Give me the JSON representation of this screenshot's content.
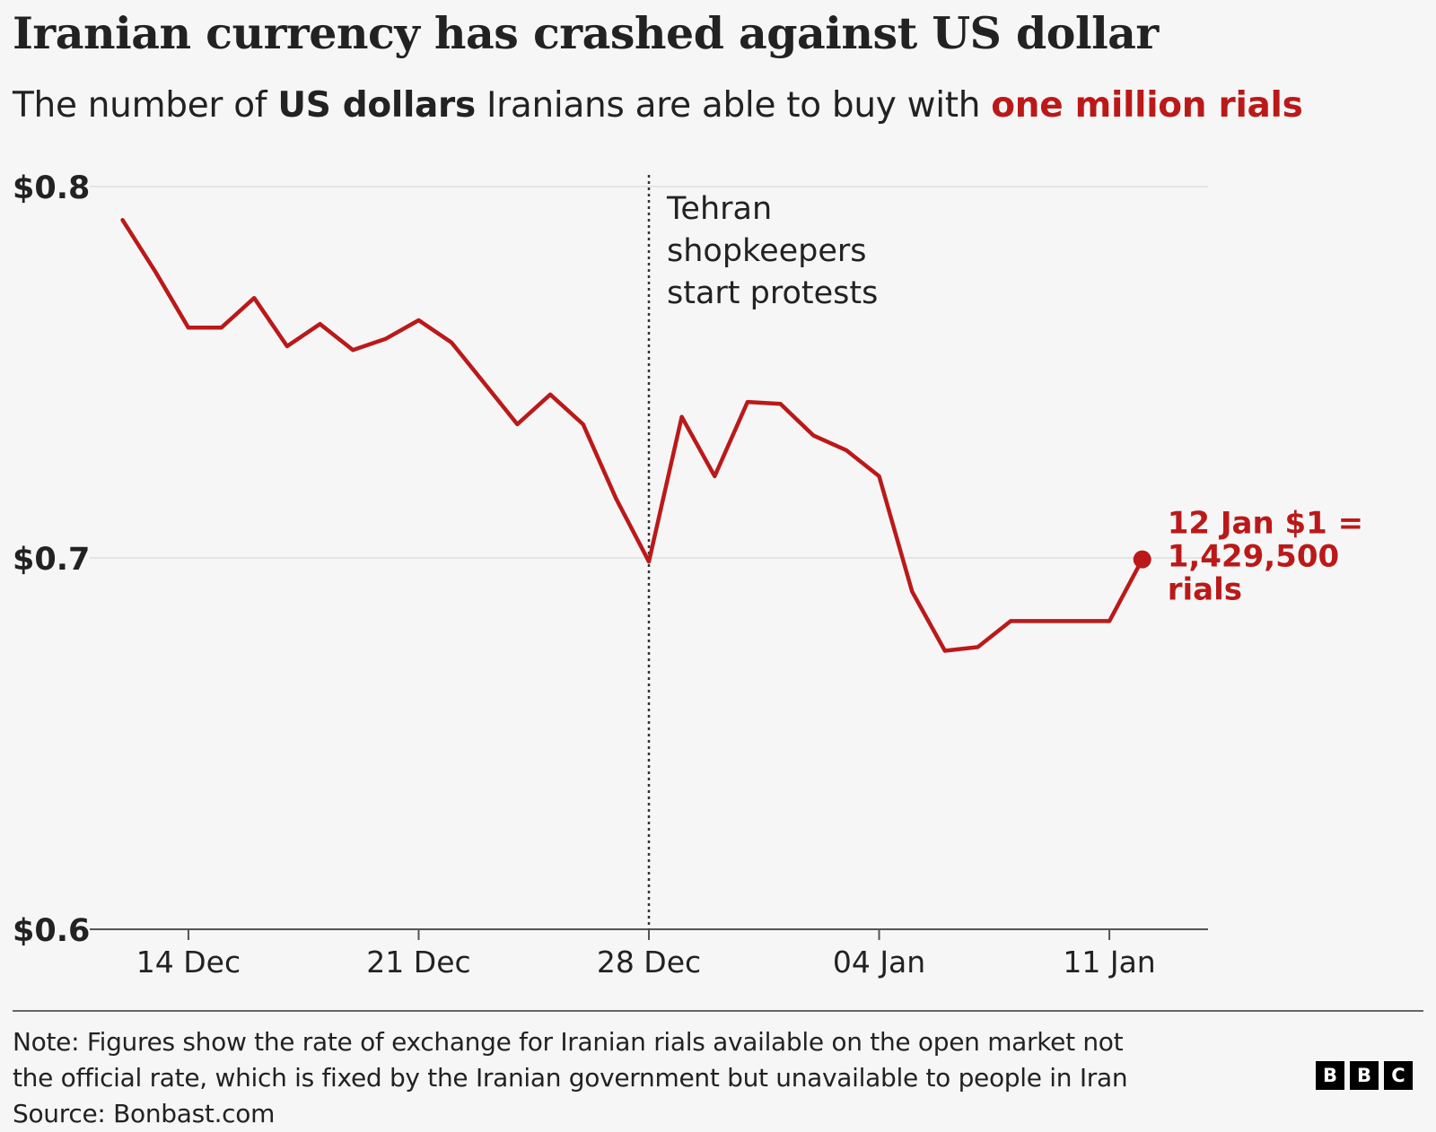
{
  "title": "Iranian currency has crashed against US dollar",
  "subtitle": {
    "part1": "The number of ",
    "bold": "US dollars",
    "part2": " Iranians are able to buy with ",
    "red": "one million rials"
  },
  "colors": {
    "line": "#bb1919",
    "text": "#222222",
    "grid": "#e4e4e4",
    "background": "#f6f6f6"
  },
  "chart_data": {
    "type": "line",
    "ylim": [
      0.6,
      0.8
    ],
    "xlim": [
      "2025-12-11",
      "2026-01-14"
    ],
    "y_ticks": [
      {
        "value": 0.8,
        "label": "$0.8"
      },
      {
        "value": 0.7,
        "label": "$0.7"
      },
      {
        "value": 0.6,
        "label": "$0.6"
      }
    ],
    "x_ticks": [
      {
        "date": "2025-12-14",
        "label": "14 Dec"
      },
      {
        "date": "2025-12-21",
        "label": "21 Dec"
      },
      {
        "date": "2025-12-28",
        "label": "28 Dec"
      },
      {
        "date": "2026-01-04",
        "label": "04 Jan"
      },
      {
        "date": "2026-01-11",
        "label": "11 Jan"
      }
    ],
    "grid": "horizontal",
    "series": [
      {
        "x": [
          "2025-12-12",
          "2025-12-13",
          "2025-12-14",
          "2025-12-15",
          "2025-12-16",
          "2025-12-17",
          "2025-12-18",
          "2025-12-19",
          "2025-12-20",
          "2025-12-21",
          "2025-12-22",
          "2025-12-23",
          "2025-12-24",
          "2025-12-25",
          "2025-12-26",
          "2025-12-27",
          "2025-12-28",
          "2025-12-29",
          "2025-12-30",
          "2025-12-31",
          "2026-01-01",
          "2026-01-02",
          "2026-01-03",
          "2026-01-04",
          "2026-01-05",
          "2026-01-06",
          "2026-01-07",
          "2026-01-08",
          "2026-01-09",
          "2026-01-10",
          "2026-01-11",
          "2026-01-12"
        ],
        "values": [
          0.791,
          0.777,
          0.762,
          0.762,
          0.77,
          0.757,
          0.763,
          0.756,
          0.759,
          0.764,
          0.758,
          0.747,
          0.736,
          0.744,
          0.736,
          0.716,
          0.699,
          0.738,
          0.722,
          0.742,
          0.7415,
          0.733,
          0.729,
          0.722,
          0.691,
          0.675,
          0.676,
          0.683,
          0.683,
          0.683,
          0.683,
          0.6996
        ]
      }
    ],
    "annotations": [
      {
        "date": "2025-12-28",
        "type": "dotted-vline",
        "lines": [
          "Tehran",
          "shopkeepers",
          "start protests"
        ]
      }
    ],
    "end_label": {
      "lines": [
        "12 Jan $1 =",
        "1,429,500",
        "rials"
      ]
    }
  },
  "footer": {
    "note_line1": "Note: Figures show the rate of exchange for Iranian rials available on the open market not",
    "note_line2": "the official rate, which is fixed by the Iranian government but unavailable to people in Iran",
    "source": "Source: Bonbast.com",
    "logo_letters": [
      "B",
      "B",
      "C"
    ]
  }
}
